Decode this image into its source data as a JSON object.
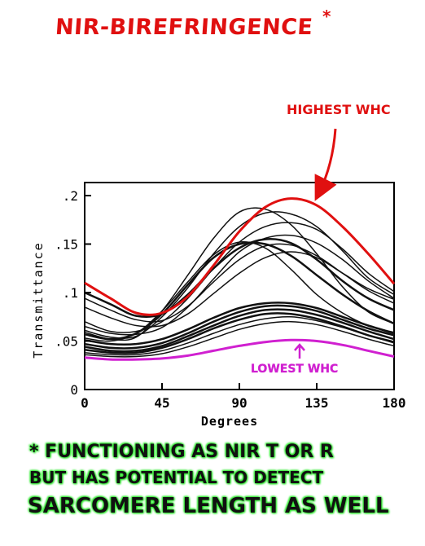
{
  "title": "NIR-BIREFRINGENCE",
  "title_mark": "*",
  "colors": {
    "highest": "#e01010",
    "lowest": "#d020d0",
    "curves": "#111111",
    "note_glow": "#2ee82e"
  },
  "footnote": {
    "line1": "* FUNCTIONING AS NIR T OR R",
    "line2": "BUT HAS POTENTIAL TO DETECT",
    "line3": "SARCOMERE LENGTH AS WELL"
  },
  "chart_data": {
    "type": "line",
    "xlabel": "Degrees",
    "ylabel": "Transmittance",
    "xlim": [
      0,
      180
    ],
    "ylim": [
      0,
      0.21
    ],
    "x_ticks": [
      "0",
      "45",
      "90",
      "135",
      "180"
    ],
    "y_ticks": [
      "0",
      ".05",
      ".1",
      ".15",
      ".2"
    ],
    "grid": false,
    "annotations": [
      {
        "text": "HIGHEST WHC",
        "series": "highest",
        "color": "#e01010"
      },
      {
        "text": "LOWEST WHC",
        "series": "lowest",
        "color": "#d020d0"
      }
    ],
    "x": [
      0,
      15,
      30,
      45,
      60,
      75,
      90,
      105,
      120,
      135,
      150,
      165,
      180
    ],
    "series": [
      {
        "id": "highest",
        "color": "#e01010",
        "width": 3,
        "values": [
          0.11,
          0.094,
          0.079,
          0.079,
          0.096,
          0.128,
          0.163,
          0.188,
          0.197,
          0.19,
          0.168,
          0.14,
          0.109
        ]
      },
      {
        "id": "black-1",
        "color": "#111111",
        "width": 1.5,
        "values": [
          0.059,
          0.052,
          0.054,
          0.081,
          0.118,
          0.156,
          0.183,
          0.186,
          0.17,
          0.14,
          0.106,
          0.08,
          0.068
        ]
      },
      {
        "id": "black-2",
        "color": "#111111",
        "width": 1.5,
        "values": [
          0.061,
          0.054,
          0.055,
          0.075,
          0.105,
          0.14,
          0.168,
          0.182,
          0.181,
          0.168,
          0.143,
          0.115,
          0.098
        ]
      },
      {
        "id": "black-3",
        "color": "#111111",
        "width": 1.5,
        "values": [
          0.07,
          0.06,
          0.06,
          0.07,
          0.094,
          0.125,
          0.152,
          0.168,
          0.172,
          0.165,
          0.145,
          0.12,
          0.101
        ]
      },
      {
        "id": "black-4",
        "color": "#111111",
        "width": 1.5,
        "values": [
          0.065,
          0.058,
          0.057,
          0.064,
          0.085,
          0.114,
          0.142,
          0.156,
          0.159,
          0.151,
          0.134,
          0.112,
          0.094
        ]
      },
      {
        "id": "black-5",
        "color": "#111111",
        "width": 2.5,
        "values": [
          0.057,
          0.052,
          0.058,
          0.078,
          0.108,
          0.136,
          0.15,
          0.15,
          0.138,
          0.118,
          0.098,
          0.081,
          0.068
        ]
      },
      {
        "id": "black-6",
        "color": "#111111",
        "width": 1.5,
        "values": [
          0.053,
          0.05,
          0.058,
          0.081,
          0.111,
          0.139,
          0.152,
          0.146,
          0.124,
          0.098,
          0.079,
          0.066,
          0.059
        ]
      },
      {
        "id": "black-7",
        "color": "#111111",
        "width": 2.5,
        "values": [
          0.1,
          0.088,
          0.076,
          0.078,
          0.098,
          0.125,
          0.146,
          0.155,
          0.151,
          0.134,
          0.112,
          0.094,
          0.082
        ]
      },
      {
        "id": "black-8",
        "color": "#111111",
        "width": 1.5,
        "values": [
          0.094,
          0.082,
          0.072,
          0.071,
          0.086,
          0.111,
          0.134,
          0.148,
          0.149,
          0.138,
          0.12,
          0.102,
          0.089
        ]
      },
      {
        "id": "black-9",
        "color": "#111111",
        "width": 1.5,
        "values": [
          0.085,
          0.074,
          0.066,
          0.066,
          0.078,
          0.099,
          0.12,
          0.136,
          0.142,
          0.136,
          0.12,
          0.104,
          0.093
        ]
      },
      {
        "id": "black-10",
        "color": "#111111",
        "width": 2.5,
        "values": [
          0.051,
          0.047,
          0.047,
          0.052,
          0.062,
          0.074,
          0.084,
          0.089,
          0.089,
          0.084,
          0.075,
          0.066,
          0.058
        ]
      },
      {
        "id": "black-11",
        "color": "#111111",
        "width": 2.5,
        "values": [
          0.047,
          0.043,
          0.043,
          0.048,
          0.058,
          0.07,
          0.08,
          0.086,
          0.086,
          0.081,
          0.072,
          0.063,
          0.056
        ]
      },
      {
        "id": "black-12",
        "color": "#111111",
        "width": 2.5,
        "values": [
          0.044,
          0.04,
          0.04,
          0.045,
          0.055,
          0.066,
          0.076,
          0.082,
          0.082,
          0.077,
          0.069,
          0.06,
          0.052
        ]
      },
      {
        "id": "black-13",
        "color": "#111111",
        "width": 2.5,
        "values": [
          0.041,
          0.038,
          0.038,
          0.043,
          0.052,
          0.063,
          0.072,
          0.078,
          0.078,
          0.073,
          0.065,
          0.056,
          0.049
        ]
      },
      {
        "id": "black-14",
        "color": "#111111",
        "width": 1.5,
        "values": [
          0.038,
          0.036,
          0.036,
          0.04,
          0.048,
          0.058,
          0.067,
          0.073,
          0.075,
          0.071,
          0.064,
          0.056,
          0.048
        ]
      },
      {
        "id": "black-15",
        "color": "#111111",
        "width": 1.5,
        "values": [
          0.036,
          0.034,
          0.034,
          0.037,
          0.044,
          0.053,
          0.062,
          0.068,
          0.07,
          0.067,
          0.06,
          0.052,
          0.045
        ]
      },
      {
        "id": "lowest",
        "color": "#d020d0",
        "width": 3,
        "values": [
          0.033,
          0.031,
          0.031,
          0.032,
          0.035,
          0.04,
          0.045,
          0.049,
          0.051,
          0.05,
          0.046,
          0.04,
          0.034
        ]
      }
    ]
  }
}
